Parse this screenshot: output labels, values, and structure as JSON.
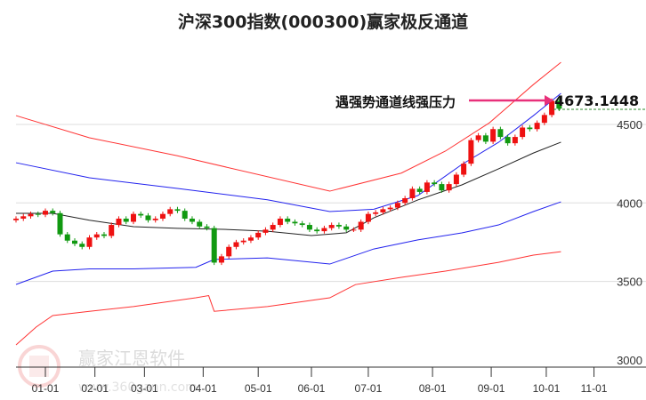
{
  "chart_data": {
    "type": "candlestick",
    "title": "沪深300指数(000300)赢家极反通道",
    "annotation": {
      "label": "遇强势通道线强压力",
      "value": "4673.1448"
    },
    "watermark": {
      "name": "赢家江恩软件",
      "url": "www.360gann.com",
      "seal": "江赢恩家"
    },
    "y_ticks": [
      3000,
      3500,
      4000,
      4500
    ],
    "ylim": [
      3000,
      4900
    ],
    "x_ticks": [
      {
        "label": "01-01",
        "day": 0
      },
      {
        "label": "02-01",
        "day": 27
      },
      {
        "label": "03-01",
        "day": 54
      },
      {
        "label": "04-01",
        "day": 86
      },
      {
        "label": "05-01",
        "day": 116
      },
      {
        "label": "06-01",
        "day": 145
      },
      {
        "label": "07-01",
        "day": 176
      },
      {
        "label": "08-01",
        "day": 211
      },
      {
        "label": "09-01",
        "day": 243
      },
      {
        "label": "10-01",
        "day": 273
      },
      {
        "label": "11-01",
        "day": 299
      }
    ],
    "candle_days_start": -16,
    "candle_days_step": 4,
    "closes": [
      3900,
      3915,
      3930,
      3925,
      3950,
      3935,
      3800,
      3760,
      3740,
      3720,
      3780,
      3800,
      3790,
      3860,
      3900,
      3880,
      3930,
      3920,
      3890,
      3900,
      3930,
      3960,
      3950,
      3900,
      3880,
      3850,
      3840,
      3620,
      3660,
      3720,
      3750,
      3760,
      3780,
      3810,
      3830,
      3860,
      3900,
      3880,
      3870,
      3860,
      3830,
      3820,
      3840,
      3860,
      3850,
      3830,
      3830,
      3880,
      3930,
      3940,
      3960,
      3970,
      4000,
      4030,
      4090,
      4070,
      4130,
      4120,
      4080,
      4120,
      4180,
      4250,
      4400,
      4430,
      4390,
      4470,
      4420,
      4380,
      4420,
      4480,
      4470,
      4510,
      4560,
      4650,
      4600
    ],
    "series": [
      {
        "name": "upper-red",
        "color": "#ff3333",
        "points": [
          [
            -16,
            4556
          ],
          [
            24,
            4415
          ],
          [
            72,
            4300
          ],
          [
            155,
            4075
          ],
          [
            194,
            4190
          ],
          [
            218,
            4330
          ],
          [
            242,
            4510
          ],
          [
            266,
            4754
          ],
          [
            281,
            4895
          ]
        ]
      },
      {
        "name": "upper-blue",
        "color": "#2222ee",
        "points": [
          [
            -16,
            4256
          ],
          [
            24,
            4160
          ],
          [
            72,
            4092
          ],
          [
            121,
            4020
          ],
          [
            155,
            3945
          ],
          [
            179,
            3960
          ],
          [
            203,
            4047
          ],
          [
            227,
            4245
          ],
          [
            247,
            4386
          ],
          [
            266,
            4556
          ],
          [
            281,
            4698
          ]
        ]
      },
      {
        "name": "middle-black",
        "color": "#222222",
        "points": [
          [
            -16,
            3934
          ],
          [
            4,
            3934
          ],
          [
            24,
            3890
          ],
          [
            48,
            3849
          ],
          [
            72,
            3838
          ],
          [
            97,
            3832
          ],
          [
            121,
            3820
          ],
          [
            145,
            3792
          ],
          [
            164,
            3810
          ],
          [
            179,
            3905
          ],
          [
            203,
            4019
          ],
          [
            227,
            4115
          ],
          [
            247,
            4217
          ],
          [
            266,
            4318
          ],
          [
            281,
            4387
          ]
        ]
      },
      {
        "name": "lower-blue",
        "color": "#2222ee",
        "points": [
          [
            -16,
            3481
          ],
          [
            4,
            3566
          ],
          [
            24,
            3580
          ],
          [
            48,
            3580
          ],
          [
            82,
            3590
          ],
          [
            92,
            3640
          ],
          [
            121,
            3650
          ],
          [
            155,
            3611
          ],
          [
            179,
            3707
          ],
          [
            203,
            3765
          ],
          [
            227,
            3809
          ],
          [
            247,
            3860
          ],
          [
            266,
            3945
          ],
          [
            281,
            4007
          ]
        ]
      },
      {
        "name": "lower-red",
        "color": "#ff3333",
        "points": [
          [
            -16,
            3096
          ],
          [
            -5,
            3210
          ],
          [
            4,
            3283
          ],
          [
            24,
            3310
          ],
          [
            48,
            3340
          ],
          [
            82,
            3396
          ],
          [
            89,
            3410
          ],
          [
            92,
            3310
          ],
          [
            121,
            3340
          ],
          [
            155,
            3396
          ],
          [
            169,
            3480
          ],
          [
            194,
            3526
          ],
          [
            218,
            3566
          ],
          [
            247,
            3622
          ],
          [
            266,
            3668
          ],
          [
            281,
            3690
          ]
        ]
      }
    ]
  }
}
